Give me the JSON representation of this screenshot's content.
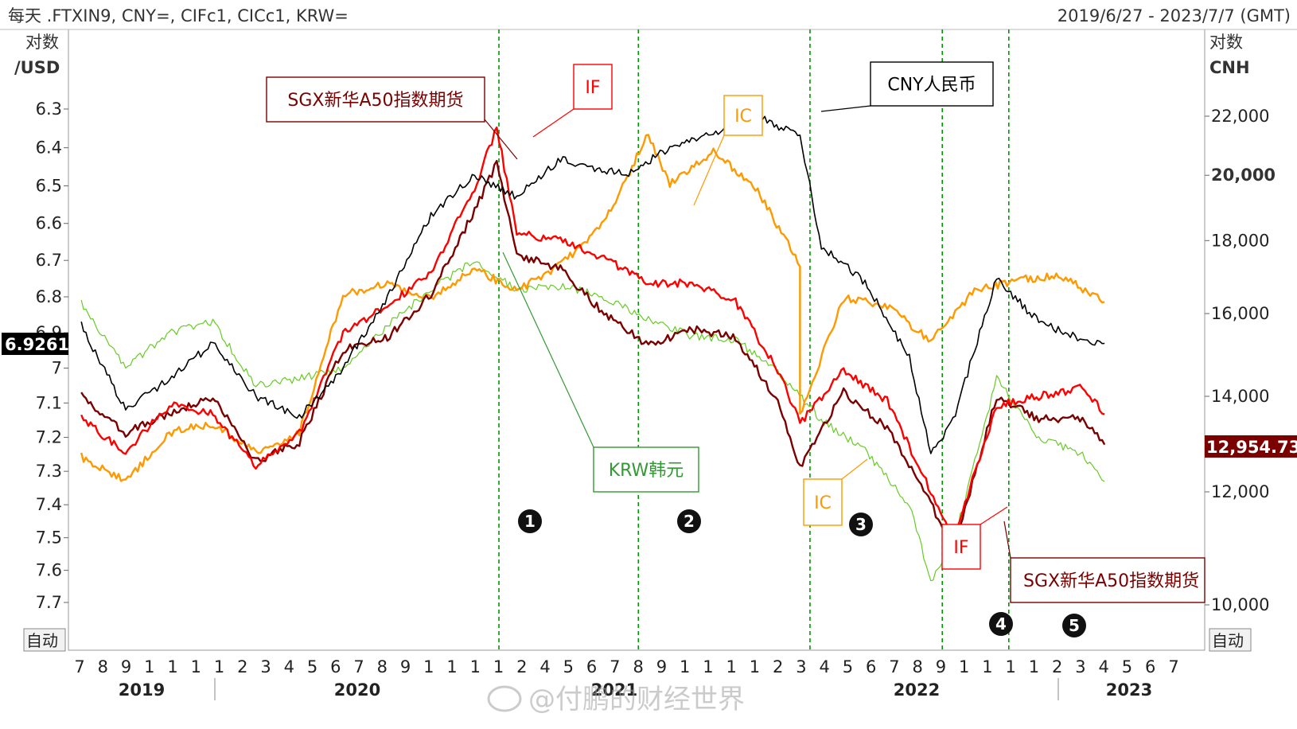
{
  "header": {
    "left": "每天 .FTXIN9, CNY=, CIFc1, CICc1, KRW=",
    "right": "2019/6/27 - 2023/7/7 (GMT)"
  },
  "axes": {
    "left_unit_1": "对数",
    "left_unit_2": "/USD",
    "right_unit_1": "对数",
    "right_unit_2": "CNH",
    "auto_left": "自动",
    "auto_right": "自动",
    "left_value_badge": "6.9261",
    "right_value_badge": "12,954.73"
  },
  "watermark": "@付鹏的财经世界",
  "colors": {
    "cny": "#000000",
    "if": "#ff0000",
    "ic": "#ff9900",
    "a50": "#7b0000",
    "krw": "#66cc22",
    "vline": "#009900"
  },
  "annotations": {
    "a50_top": "SGX新华A50指数期货",
    "if_top": "IF",
    "ic_top": "IC",
    "cny": "CNY人民币",
    "krw": "KRW韩元",
    "ic_mid": "IC",
    "if_low": "IF",
    "a50_low": "SGX新华A50指数期货"
  },
  "markers": [
    "1",
    "2",
    "3",
    "4",
    "5"
  ],
  "chart_data": {
    "type": "line",
    "x_range": [
      "2019-06-27",
      "2023-07-07"
    ],
    "left_axis": {
      "unit": "/USD",
      "inverted": true,
      "scale": "log",
      "ticks": [
        "6.3",
        "6.4",
        "6.5",
        "6.6",
        "6.7",
        "6.8",
        "6.9",
        "7",
        "7.1",
        "7.2",
        "7.3",
        "7.4",
        "7.5",
        "7.6",
        "7.7"
      ],
      "last_value": 6.9261
    },
    "right_axis": {
      "unit": "CNH",
      "scale": "log",
      "ticks": [
        "22,000",
        "20,000",
        "18,000",
        "16,000",
        "14,000",
        "12,000",
        "10,000"
      ],
      "last_value": 12954.73
    },
    "x_month_labels": [
      "7",
      "8",
      "9",
      "1",
      "1",
      "1",
      "1",
      "2",
      "3",
      "4",
      "5",
      "6",
      "7",
      "8",
      "9",
      "1",
      "1",
      "1",
      "1",
      "2",
      "4",
      "5",
      "6",
      "7",
      "8",
      "9",
      "1",
      "1",
      "1",
      "1",
      "2",
      "3",
      "4",
      "5",
      "6",
      "7",
      "8",
      "9",
      "1",
      "1",
      "1",
      "1",
      "2",
      "3",
      "4",
      "5",
      "6",
      "7"
    ],
    "x_year_labels": [
      "2019",
      "2020",
      "2021",
      "2022",
      "2023"
    ],
    "event_lines": [
      "2021-02-18",
      "2021-09-01",
      "2022-04-29",
      "2022-10-31",
      "2023-02-01"
    ],
    "series": [
      {
        "name": "CNY人民币",
        "axis": "left",
        "points": [
          [
            "2019-07",
            6.88
          ],
          [
            "2019-09",
            7.12
          ],
          [
            "2019-11",
            7.03
          ],
          [
            "2020-01",
            6.93
          ],
          [
            "2020-03",
            7.08
          ],
          [
            "2020-05",
            7.14
          ],
          [
            "2020-07",
            7.0
          ],
          [
            "2020-09",
            6.8
          ],
          [
            "2020-11",
            6.58
          ],
          [
            "2021-01",
            6.47
          ],
          [
            "2021-03",
            6.53
          ],
          [
            "2021-05",
            6.43
          ],
          [
            "2021-06",
            6.45
          ],
          [
            "2021-08",
            6.47
          ],
          [
            "2021-10",
            6.4
          ],
          [
            "2021-12",
            6.36
          ],
          [
            "2022-02",
            6.32
          ],
          [
            "2022-04",
            6.37
          ],
          [
            "2022-05",
            6.66
          ],
          [
            "2022-07",
            6.76
          ],
          [
            "2022-09",
            6.97
          ],
          [
            "2022-10",
            7.25
          ],
          [
            "2022-11",
            7.15
          ],
          [
            "2023-01",
            6.75
          ],
          [
            "2023-03",
            6.87
          ],
          [
            "2023-05",
            6.92
          ],
          [
            "2023-06",
            6.93
          ]
        ]
      },
      {
        "name": "IF",
        "axis": "right",
        "points": [
          [
            "2019-07",
            13500
          ],
          [
            "2019-09",
            12800
          ],
          [
            "2019-11",
            13800
          ],
          [
            "2020-01",
            13600
          ],
          [
            "2020-03",
            12500
          ],
          [
            "2020-05",
            13200
          ],
          [
            "2020-07",
            15500
          ],
          [
            "2020-09",
            16200
          ],
          [
            "2020-11",
            17100
          ],
          [
            "2021-01",
            19600
          ],
          [
            "2021-02",
            21600
          ],
          [
            "2021-03",
            18200
          ],
          [
            "2021-05",
            18000
          ],
          [
            "2021-07",
            17500
          ],
          [
            "2021-09",
            16800
          ],
          [
            "2021-11",
            16800
          ],
          [
            "2022-01",
            16300
          ],
          [
            "2022-03",
            14600
          ],
          [
            "2022-04",
            13400
          ],
          [
            "2022-06",
            14600
          ],
          [
            "2022-08",
            13900
          ],
          [
            "2022-10",
            12000
          ],
          [
            "2022-11",
            11100
          ],
          [
            "2023-01",
            13800
          ],
          [
            "2023-03",
            14000
          ],
          [
            "2023-05",
            14200
          ],
          [
            "2023-06",
            13600
          ]
        ]
      },
      {
        "name": "IC",
        "axis": "right",
        "points": [
          [
            "2019-07",
            12700
          ],
          [
            "2019-09",
            12200
          ],
          [
            "2019-11",
            13200
          ],
          [
            "2020-01",
            13400
          ],
          [
            "2020-03",
            12800
          ],
          [
            "2020-05",
            13200
          ],
          [
            "2020-07",
            16500
          ],
          [
            "2020-09",
            16800
          ],
          [
            "2020-11",
            16400
          ],
          [
            "2021-01",
            17200
          ],
          [
            "2021-03",
            16600
          ],
          [
            "2021-05",
            17300
          ],
          [
            "2021-07",
            18500
          ],
          [
            "2021-09",
            21400
          ],
          [
            "2021-10",
            19700
          ],
          [
            "2021-12",
            20800
          ],
          [
            "2022-02",
            19500
          ],
          [
            "2022-04",
            17300
          ],
          [
            "2022-04",
            13600
          ],
          [
            "2022-06",
            16400
          ],
          [
            "2022-08",
            16200
          ],
          [
            "2022-10",
            15300
          ],
          [
            "2022-12",
            16600
          ],
          [
            "2023-02",
            16900
          ],
          [
            "2023-04",
            17000
          ],
          [
            "2023-06",
            16300
          ]
        ]
      },
      {
        "name": "SGX新华A50指数期货",
        "axis": "right",
        "points": [
          [
            "2019-07",
            14000
          ],
          [
            "2019-09",
            13200
          ],
          [
            "2019-11",
            13600
          ],
          [
            "2020-01",
            14000
          ],
          [
            "2020-03",
            12600
          ],
          [
            "2020-05",
            13000
          ],
          [
            "2020-07",
            15100
          ],
          [
            "2020-09",
            15400
          ],
          [
            "2020-11",
            16500
          ],
          [
            "2021-01",
            18900
          ],
          [
            "2021-02",
            20400
          ],
          [
            "2021-03",
            17600
          ],
          [
            "2021-05",
            17200
          ],
          [
            "2021-07",
            16000
          ],
          [
            "2021-09",
            15200
          ],
          [
            "2021-11",
            15600
          ],
          [
            "2022-01",
            15400
          ],
          [
            "2022-03",
            13900
          ],
          [
            "2022-04",
            12500
          ],
          [
            "2022-06",
            14100
          ],
          [
            "2022-08",
            13300
          ],
          [
            "2022-10",
            11800
          ],
          [
            "2022-11",
            10900
          ],
          [
            "2023-01",
            14000
          ],
          [
            "2023-03",
            13500
          ],
          [
            "2023-05",
            13500
          ],
          [
            "2023-06",
            12950
          ]
        ]
      },
      {
        "name": "KRW韩元",
        "axis": "left",
        "points": [
          [
            "2019-07",
            6.82
          ],
          [
            "2019-09",
            7.0
          ],
          [
            "2019-11",
            6.9
          ],
          [
            "2020-01",
            6.87
          ],
          [
            "2020-03",
            7.05
          ],
          [
            "2020-05",
            7.03
          ],
          [
            "2020-07",
            7.0
          ],
          [
            "2020-09",
            6.88
          ],
          [
            "2020-11",
            6.78
          ],
          [
            "2021-01",
            6.7
          ],
          [
            "2021-03",
            6.78
          ],
          [
            "2021-05",
            6.77
          ],
          [
            "2021-07",
            6.8
          ],
          [
            "2021-09",
            6.86
          ],
          [
            "2021-11",
            6.91
          ],
          [
            "2022-01",
            6.92
          ],
          [
            "2022-03",
            7.01
          ],
          [
            "2022-05",
            7.15
          ],
          [
            "2022-07",
            7.24
          ],
          [
            "2022-09",
            7.4
          ],
          [
            "2022-10",
            7.63
          ],
          [
            "2022-11",
            7.52
          ],
          [
            "2023-01",
            7.03
          ],
          [
            "2023-03",
            7.2
          ],
          [
            "2023-05",
            7.25
          ],
          [
            "2023-06",
            7.33
          ]
        ]
      }
    ]
  }
}
